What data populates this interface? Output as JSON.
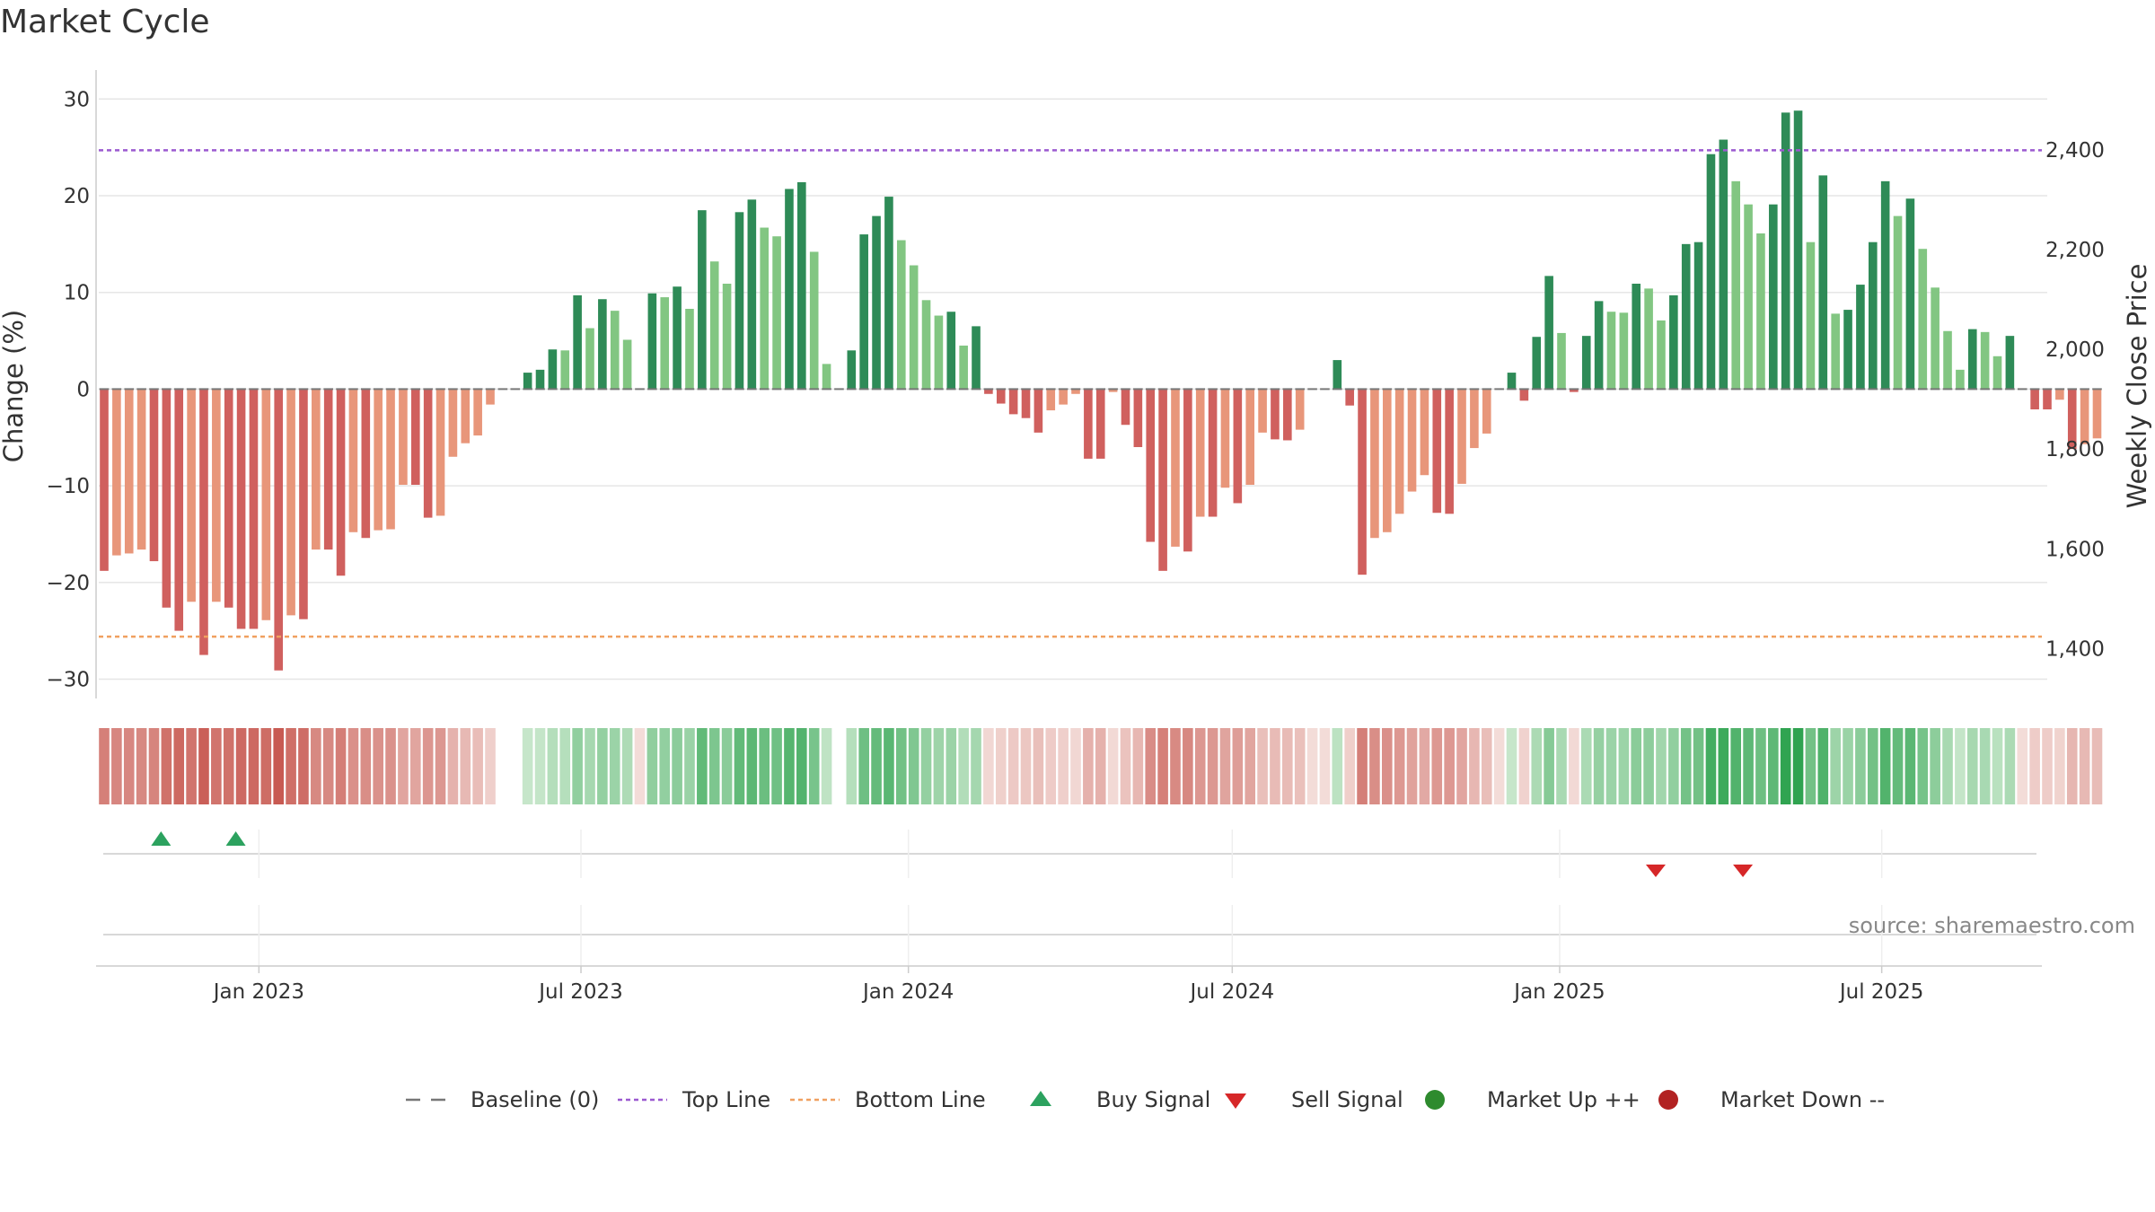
{
  "title": "Market Cycle",
  "source": "source: sharemaestro.com",
  "colors": {
    "up_strong": "#2e8b57",
    "up_light": "#82c682",
    "down_strong": "#d0605e",
    "down_light": "#e8967a",
    "top_line": "#9b59d0",
    "bottom_line": "#f0a060",
    "baseline": "#777777",
    "buy": "#2ca25f",
    "sell": "#d62728",
    "market_up": "#2e8b2e",
    "market_down": "#b22222"
  },
  "legend": [
    {
      "label": "Baseline (0)",
      "icon": "dash-line-icon"
    },
    {
      "label": "Top Line",
      "icon": "dotted-line-icon"
    },
    {
      "label": "Bottom Line",
      "icon": "dotted-line-icon"
    },
    {
      "label": "Buy Signal",
      "icon": "triangle-up-icon"
    },
    {
      "label": "Sell Signal",
      "icon": "triangle-down-icon"
    },
    {
      "label": "Market Up ++",
      "icon": "dot-icon"
    },
    {
      "label": "Market Down --",
      "icon": "dot-icon"
    }
  ],
  "chart_data": {
    "type": "bar",
    "x_start": "2022-10-03",
    "x_step_days": 7,
    "xlim": [
      "2022-10-03",
      "2025-09-29"
    ],
    "x_ticks": [
      "Jan 2023",
      "Jul 2023",
      "Jan 2024",
      "Jul 2024",
      "Jan 2025",
      "Jul 2025"
    ],
    "x_tick_dates": [
      "2023-01-01",
      "2023-07-01",
      "2024-01-01",
      "2024-07-01",
      "2025-01-01",
      "2025-07-01"
    ],
    "ylabel": "Change (%)",
    "ylim": [
      -32,
      33
    ],
    "y_ticks": [
      30,
      20,
      10,
      0,
      -10,
      -20,
      -30
    ],
    "y_tick_labels": [
      "30",
      "20",
      "10",
      "0",
      "−10",
      "−20",
      "−30"
    ],
    "y2label": "Weekly Close Price",
    "y2lim": [
      1300,
      2560
    ],
    "y2_ticks": [
      2400,
      2200,
      2000,
      1800,
      1600,
      1400
    ],
    "y2_tick_labels": [
      "2,400",
      "2,200",
      "2,000",
      "1,800",
      "1,600",
      "1,400"
    ],
    "top_line": 24.7,
    "bottom_line": -25.6,
    "values": [
      -18.8,
      -17.2,
      -17.0,
      -16.6,
      -17.8,
      -22.6,
      -25.0,
      -22.0,
      -27.5,
      -22.0,
      -22.6,
      -24.8,
      -24.8,
      -23.9,
      -29.1,
      -23.4,
      -23.8,
      -16.6,
      -16.6,
      -19.3,
      -14.8,
      -15.4,
      -14.6,
      -14.5,
      -9.9,
      -9.9,
      -13.3,
      -13.1,
      -7.0,
      -5.6,
      -4.8,
      -1.6,
      0,
      0,
      1.7,
      2.0,
      4.1,
      4.0,
      9.7,
      6.3,
      9.3,
      8.1,
      5.1,
      0,
      9.9,
      9.5,
      10.6,
      8.3,
      18.5,
      13.2,
      10.9,
      18.3,
      19.6,
      16.7,
      15.8,
      20.7,
      21.4,
      14.2,
      2.6,
      0,
      4.0,
      16.0,
      17.9,
      19.9,
      15.4,
      12.8,
      9.2,
      7.6,
      8.0,
      4.5,
      6.5,
      -0.5,
      -1.5,
      -2.6,
      -3.0,
      -4.5,
      -2.2,
      -1.6,
      -0.5,
      -7.2,
      -7.2,
      -0.3,
      -3.7,
      -6.0,
      -15.8,
      -18.8,
      -16.3,
      -16.8,
      -13.2,
      -13.2,
      -10.2,
      -11.8,
      -9.9,
      -4.5,
      -5.2,
      -5.3,
      -4.2,
      0,
      0,
      3.0,
      -1.7,
      -19.2,
      -15.4,
      -14.8,
      -12.9,
      -10.6,
      -8.9,
      -12.8,
      -12.9,
      -9.8,
      -6.1,
      -4.6,
      0,
      1.7,
      -1.2,
      5.4,
      11.7,
      5.8,
      -0.3,
      5.5,
      9.1,
      8.0,
      7.9,
      10.9,
      10.4,
      7.1,
      9.7,
      15.0,
      15.2,
      24.3,
      25.8,
      21.5,
      19.1,
      16.1,
      19.1,
      28.6,
      28.8,
      15.2,
      22.1,
      7.8,
      8.2,
      10.8,
      15.2,
      21.5,
      17.9,
      19.7,
      14.5,
      10.5,
      6.0,
      2.0,
      6.2,
      5.9,
      3.4,
      5.5,
      0,
      -2.1,
      -2.1,
      -1.1,
      -6.2,
      -5.7,
      -5.1
    ],
    "strip_gap_ranges": [
      [
        32,
        33
      ],
      [
        59,
        59
      ]
    ],
    "buy_signals": [
      "2022-11-07",
      "2022-12-19"
    ],
    "sell_signals": [
      "2025-02-24",
      "2025-04-14"
    ]
  }
}
